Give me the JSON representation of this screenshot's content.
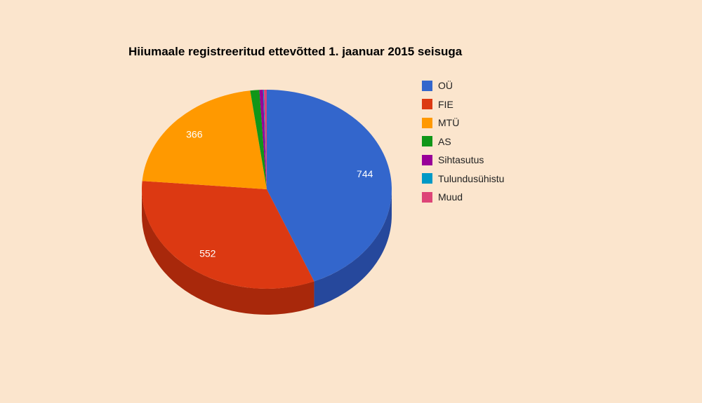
{
  "chart_data": {
    "type": "pie",
    "title": "Hiiumaale registreeritud ettevõtted 1. jaanuar 2015 seisuga",
    "legend_position": "right",
    "slices": [
      {
        "name": "OÜ",
        "value": 744,
        "color": "#3366cc",
        "side_color": "#26489c",
        "label": "744"
      },
      {
        "name": "FIE",
        "value": 552,
        "color": "#dc3912",
        "side_color": "#a8280b",
        "label": "552"
      },
      {
        "name": "MTÜ",
        "value": 366,
        "color": "#ff9900",
        "side_color": "#c47500",
        "label": "366"
      },
      {
        "name": "AS",
        "value": 20,
        "color": "#109618",
        "side_color": "#0b6a11",
        "label": ""
      },
      {
        "name": "Sihtasutus",
        "value": 8,
        "color": "#990099",
        "side_color": "#6e006e",
        "label": ""
      },
      {
        "name": "Tulundusühistu",
        "value": 2,
        "color": "#0099c6",
        "side_color": "#006f91",
        "label": ""
      },
      {
        "name": "Muud",
        "value": 6,
        "color": "#dd4477",
        "side_color": "#a63059",
        "label": ""
      }
    ]
  }
}
